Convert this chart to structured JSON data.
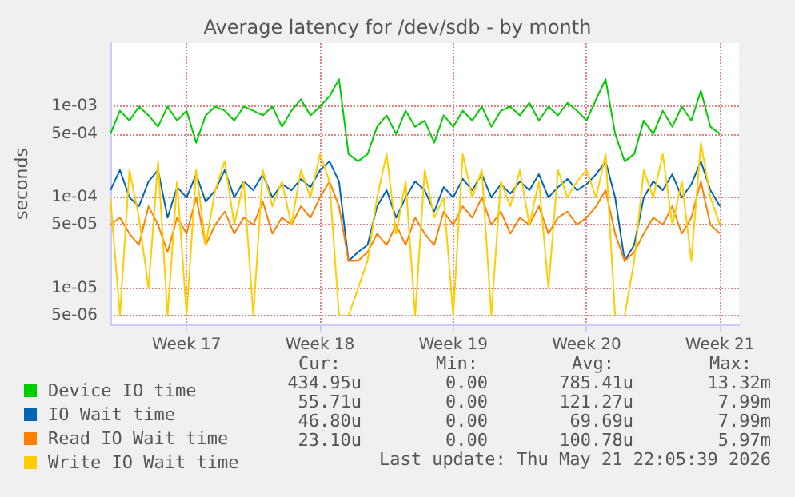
{
  "chart_data": {
    "type": "line",
    "title": "Average latency for /dev/sdb - by month",
    "ylabel": "seconds",
    "x": [
      "2026-04-19T12:00",
      "2026-04-20T00:00",
      "2026-04-20T12:00",
      "2026-04-21T00:00",
      "2026-04-21T12:00",
      "2026-04-22T00:00",
      "2026-04-22T12:00",
      "2026-04-23T00:00",
      "2026-04-23T12:00",
      "2026-04-24T00:00",
      "2026-04-24T12:00",
      "2026-04-25T00:00",
      "2026-04-25T12:00",
      "2026-04-26T00:00",
      "2026-04-26T12:00",
      "2026-04-27T00:00",
      "2026-04-27T12:00",
      "2026-04-28T00:00",
      "2026-04-28T12:00",
      "2026-04-29T00:00",
      "2026-04-29T12:00",
      "2026-04-30T00:00",
      "2026-04-30T12:00",
      "2026-05-01T00:00",
      "2026-05-01T12:00",
      "2026-05-02T00:00",
      "2026-05-02T12:00",
      "2026-05-03T00:00",
      "2026-05-03T12:00",
      "2026-05-04T00:00",
      "2026-05-04T12:00",
      "2026-05-05T00:00",
      "2026-05-05T12:00",
      "2026-05-06T00:00",
      "2026-05-06T12:00",
      "2026-05-07T00:00",
      "2026-05-07T12:00",
      "2026-05-08T00:00",
      "2026-05-08T12:00",
      "2026-05-09T00:00",
      "2026-05-09T12:00",
      "2026-05-10T00:00",
      "2026-05-10T12:00",
      "2026-05-11T00:00",
      "2026-05-11T12:00",
      "2026-05-12T00:00",
      "2026-05-12T12:00",
      "2026-05-13T00:00",
      "2026-05-13T12:00",
      "2026-05-14T00:00",
      "2026-05-14T12:00",
      "2026-05-15T00:00",
      "2026-05-15T12:00",
      "2026-05-16T00:00",
      "2026-05-16T12:00",
      "2026-05-17T00:00",
      "2026-05-17T12:00",
      "2026-05-18T00:00",
      "2026-05-18T12:00",
      "2026-05-19T00:00",
      "2026-05-19T12:00",
      "2026-05-20T00:00",
      "2026-05-20T12:00",
      "2026-05-21T00:00",
      "2026-05-21T12:00"
    ],
    "series": [
      {
        "name": "Device IO time",
        "color": "#00cc00",
        "values": [
          0.0005,
          0.0009,
          0.0007,
          0.001,
          0.0008,
          0.0006,
          0.001,
          0.0007,
          0.0009,
          0.0004,
          0.0008,
          0.001,
          0.0009,
          0.0007,
          0.001,
          0.0009,
          0.0008,
          0.001,
          0.0006,
          0.0009,
          0.0012,
          0.0008,
          0.001,
          0.0013,
          0.002,
          0.0003,
          0.00025,
          0.0003,
          0.0006,
          0.0008,
          0.0005,
          0.0009,
          0.0006,
          0.0007,
          0.0004,
          0.0008,
          0.0006,
          0.0009,
          0.0007,
          0.001,
          0.0006,
          0.0009,
          0.001,
          0.0008,
          0.0011,
          0.0007,
          0.001,
          0.0008,
          0.0011,
          0.0009,
          0.0007,
          0.0012,
          0.002,
          0.0005,
          0.00025,
          0.0003,
          0.0007,
          0.0005,
          0.0009,
          0.0006,
          0.001,
          0.0007,
          0.0015,
          0.0006,
          0.0005
        ]
      },
      {
        "name": "IO Wait time",
        "color": "#0066b3",
        "values": [
          0.00012,
          0.0002,
          0.0001,
          8e-05,
          0.00015,
          0.0002,
          6e-05,
          0.00013,
          0.0001,
          0.00018,
          9e-05,
          0.00012,
          0.0002,
          0.0001,
          0.00015,
          0.00012,
          0.00018,
          0.0001,
          0.00014,
          0.00012,
          0.00016,
          0.00013,
          0.0002,
          0.00025,
          0.00015,
          2e-05,
          2.5e-05,
          3e-05,
          8e-05,
          0.00012,
          6e-05,
          0.0001,
          0.00015,
          0.00012,
          7e-05,
          0.00013,
          0.0001,
          0.00016,
          0.00012,
          0.00018,
          0.0001,
          0.00014,
          0.00011,
          0.00015,
          0.00012,
          0.00018,
          0.0001,
          0.00013,
          0.00016,
          0.00012,
          0.00014,
          0.00018,
          0.00025,
          0.0001,
          2e-05,
          3e-05,
          0.0001,
          0.00015,
          0.00012,
          0.00018,
          0.0001,
          0.00014,
          0.00025,
          0.00012,
          8e-05
        ]
      },
      {
        "name": "Read IO Wait time",
        "color": "#ff8000",
        "values": [
          5e-05,
          6e-05,
          4e-05,
          3e-05,
          8e-05,
          5e-05,
          2.5e-05,
          6e-05,
          4e-05,
          0.0001,
          3e-05,
          5e-05,
          7e-05,
          4e-05,
          6e-05,
          5e-05,
          9e-05,
          4e-05,
          6e-05,
          5e-05,
          8e-05,
          6e-05,
          0.0001,
          0.00015,
          8e-05,
          2e-05,
          2e-05,
          2.5e-05,
          4e-05,
          3e-05,
          5e-05,
          3e-05,
          6e-05,
          4e-05,
          3e-05,
          7e-05,
          5e-05,
          8e-05,
          6e-05,
          0.0001,
          5e-05,
          7e-05,
          4e-05,
          6e-05,
          5e-05,
          8e-05,
          4e-05,
          6e-05,
          7e-05,
          5e-05,
          6e-05,
          8e-05,
          0.00012,
          4e-05,
          2e-05,
          2.5e-05,
          4e-05,
          6e-05,
          5e-05,
          8e-05,
          4e-05,
          6e-05,
          0.00015,
          5e-05,
          4e-05
        ]
      },
      {
        "name": "Write IO Wait time",
        "color": "#ffcc00",
        "values": [
          0.0001,
          5e-06,
          0.0002,
          6e-05,
          1e-05,
          0.00025,
          5e-06,
          0.00015,
          5e-06,
          0.0002,
          3e-05,
          0.00012,
          0.00025,
          5e-05,
          0.00015,
          5e-06,
          0.0002,
          8e-05,
          0.00015,
          5e-05,
          0.0002,
          0.0001,
          0.0003,
          0.00015,
          5e-06,
          5e-06,
          1e-05,
          2e-05,
          0.0001,
          0.0003,
          4e-05,
          0.00015,
          5e-06,
          0.0002,
          6e-05,
          0.0001,
          5e-06,
          0.0003,
          0.0001,
          0.0002,
          5e-06,
          0.00015,
          8e-05,
          0.0002,
          5e-05,
          0.00015,
          1e-05,
          0.0002,
          0.0001,
          0.00015,
          0.0002,
          0.0001,
          0.0003,
          5e-06,
          5e-06,
          2e-05,
          0.0002,
          0.0001,
          0.0003,
          5e-05,
          0.00015,
          2e-05,
          0.0004,
          0.0001,
          5e-05
        ]
      }
    ],
    "xlim": [
      "2026-04-19T12:00",
      "2026-05-22T12:00"
    ],
    "xticks": [
      {
        "value": "2026-04-23T12:00",
        "label": "Week 17"
      },
      {
        "value": "2026-04-30T12:00",
        "label": "Week 18"
      },
      {
        "value": "2026-05-07T12:00",
        "label": "Week 19"
      },
      {
        "value": "2026-05-14T12:00",
        "label": "Week 20"
      },
      {
        "value": "2026-05-21T12:00",
        "label": "Week 21"
      }
    ],
    "ylim": [
      4e-06,
      0.005
    ],
    "yticks": [
      {
        "value": 5e-06,
        "label": "5e-06"
      },
      {
        "value": 1e-05,
        "label": "1e-05"
      },
      {
        "value": 5e-05,
        "label": "5e-05"
      },
      {
        "value": 0.0001,
        "label": "1e-04"
      },
      {
        "value": 0.0005,
        "label": "5e-04"
      },
      {
        "value": 0.001,
        "label": "1e-03"
      }
    ],
    "log": "y",
    "grid": true,
    "legend": "bottom left",
    "marker": "none",
    "annotations": [
      "Cur:",
      "Min:",
      "Avg:",
      "Max:",
      "434.95u",
      "0.00",
      "785.41u",
      "13.32m",
      "55.71u",
      "0.00",
      "121.27u",
      "7.99m",
      "46.80u",
      "0.00",
      "69.69u",
      "7.99m",
      "23.10u",
      "0.00",
      "100.78u",
      "5.97m",
      "Last update: Thu May 21 22:05:39 2026"
    ]
  }
}
